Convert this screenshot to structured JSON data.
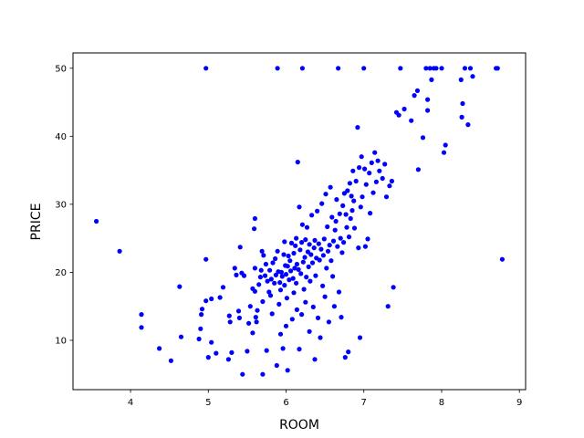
{
  "chart_data": {
    "type": "scatter",
    "xlabel": "ROOM",
    "ylabel": "PRICE",
    "xlim": [
      3.26,
      9.08
    ],
    "ylim": [
      2.75,
      52.25
    ],
    "xticks": [
      4,
      5,
      6,
      7,
      8,
      9
    ],
    "yticks": [
      10,
      20,
      30,
      40,
      50
    ],
    "grid": false,
    "marker_color": "#0000ff",
    "series": [
      {
        "points": [
          [
            3.56,
            27.5
          ],
          [
            3.86,
            23.1
          ],
          [
            4.14,
            13.8
          ],
          [
            4.14,
            11.9
          ],
          [
            4.37,
            8.8
          ],
          [
            4.52,
            7.0
          ],
          [
            4.63,
            17.9
          ],
          [
            4.65,
            10.5
          ],
          [
            4.88,
            10.2
          ],
          [
            4.9,
            11.7
          ],
          [
            4.91,
            13.8
          ],
          [
            4.92,
            14.6
          ],
          [
            4.97,
            15.8
          ],
          [
            4.97,
            50.0
          ],
          [
            4.97,
            21.9
          ],
          [
            5.0,
            7.5
          ],
          [
            5.04,
            9.7
          ],
          [
            5.1,
            8.1
          ],
          [
            5.04,
            16.1
          ],
          [
            5.15,
            16.3
          ],
          [
            5.19,
            17.8
          ],
          [
            5.26,
            7.2
          ],
          [
            5.27,
            13.6
          ],
          [
            5.28,
            12.7
          ],
          [
            5.3,
            8.2
          ],
          [
            5.34,
            20.6
          ],
          [
            5.36,
            19.6
          ],
          [
            5.39,
            14.3
          ],
          [
            5.4,
            13.3
          ],
          [
            5.41,
            23.7
          ],
          [
            5.43,
            19.9
          ],
          [
            5.44,
            5.0
          ],
          [
            5.46,
            19.5
          ],
          [
            5.5,
            8.4
          ],
          [
            5.52,
            12.5
          ],
          [
            5.54,
            15.0
          ],
          [
            5.57,
            11.1
          ],
          [
            5.57,
            17.6
          ],
          [
            5.59,
            26.4
          ],
          [
            5.6,
            27.9
          ],
          [
            5.6,
            20.6
          ],
          [
            5.6,
            17.2
          ],
          [
            5.61,
            13.4
          ],
          [
            5.62,
            12.7
          ],
          [
            5.63,
            14.4
          ],
          [
            5.65,
            18.2
          ],
          [
            5.67,
            19.3
          ],
          [
            5.68,
            20.3
          ],
          [
            5.69,
            23.1
          ],
          [
            5.7,
            5.0
          ],
          [
            5.7,
            15.7
          ],
          [
            5.71,
            22.5
          ],
          [
            5.73,
            19.5
          ],
          [
            5.74,
            21.2
          ],
          [
            5.75,
            8.5
          ],
          [
            5.76,
            18.7
          ],
          [
            5.78,
            17.1
          ],
          [
            5.79,
            20.3
          ],
          [
            5.8,
            16.6
          ],
          [
            5.81,
            19.0
          ],
          [
            5.82,
            13.9
          ],
          [
            5.83,
            21.4
          ],
          [
            5.85,
            18.4
          ],
          [
            5.86,
            22.0
          ],
          [
            5.87,
            19.6
          ],
          [
            5.88,
            6.3
          ],
          [
            5.89,
            50.0
          ],
          [
            5.89,
            23.1
          ],
          [
            5.9,
            20.1
          ],
          [
            5.91,
            15.3
          ],
          [
            5.92,
            18.5
          ],
          [
            5.93,
            10.9
          ],
          [
            5.93,
            17.4
          ],
          [
            5.94,
            20.0
          ],
          [
            5.95,
            19.4
          ],
          [
            5.96,
            8.8
          ],
          [
            5.97,
            22.6
          ],
          [
            5.98,
            18.1
          ],
          [
            5.98,
            24.5
          ],
          [
            5.99,
            21.0
          ],
          [
            6.0,
            19.7
          ],
          [
            6.0,
            12.1
          ],
          [
            6.01,
            16.2
          ],
          [
            6.02,
            20.9
          ],
          [
            6.02,
            5.6
          ],
          [
            6.03,
            22.4
          ],
          [
            6.04,
            18.9
          ],
          [
            6.05,
            21.7
          ],
          [
            6.06,
            20.2
          ],
          [
            6.07,
            24.3
          ],
          [
            6.08,
            13.1
          ],
          [
            6.09,
            19.1
          ],
          [
            6.1,
            22.8
          ],
          [
            6.1,
            17.0
          ],
          [
            6.11,
            20.6
          ],
          [
            6.12,
            23.9
          ],
          [
            6.13,
            25.0
          ],
          [
            6.13,
            18.4
          ],
          [
            6.14,
            14.5
          ],
          [
            6.14,
            21.2
          ],
          [
            6.15,
            36.2
          ],
          [
            6.16,
            20.4
          ],
          [
            6.17,
            8.7
          ],
          [
            6.17,
            29.6
          ],
          [
            6.18,
            23.3
          ],
          [
            6.19,
            19.8
          ],
          [
            6.2,
            24.4
          ],
          [
            6.2,
            13.8
          ],
          [
            6.21,
            27.0
          ],
          [
            6.21,
            50.0
          ],
          [
            6.22,
            21.5
          ],
          [
            6.23,
            17.5
          ],
          [
            6.24,
            22.2
          ],
          [
            6.25,
            15.6
          ],
          [
            6.25,
            24.8
          ],
          [
            6.26,
            19.3
          ],
          [
            6.27,
            26.6
          ],
          [
            6.28,
            23.0
          ],
          [
            6.29,
            20.8
          ],
          [
            6.3,
            11.3
          ],
          [
            6.3,
            24.1
          ],
          [
            6.31,
            18.7
          ],
          [
            6.32,
            22.6
          ],
          [
            6.33,
            28.4
          ],
          [
            6.34,
            21.4
          ],
          [
            6.35,
            14.9
          ],
          [
            6.36,
            23.6
          ],
          [
            6.37,
            7.2
          ],
          [
            6.37,
            24.7
          ],
          [
            6.38,
            19.5
          ],
          [
            6.39,
            22.1
          ],
          [
            6.4,
            29.0
          ],
          [
            6.41,
            13.3
          ],
          [
            6.42,
            24.2
          ],
          [
            6.43,
            21.8
          ],
          [
            6.44,
            10.4
          ],
          [
            6.45,
            23.4
          ],
          [
            6.46,
            30.1
          ],
          [
            6.47,
            18.0
          ],
          [
            6.48,
            22.5
          ],
          [
            6.49,
            24.9
          ],
          [
            6.5,
            16.4
          ],
          [
            6.51,
            31.5
          ],
          [
            6.52,
            20.6
          ],
          [
            6.53,
            26.7
          ],
          [
            6.54,
            23.1
          ],
          [
            6.55,
            12.7
          ],
          [
            6.56,
            24.0
          ],
          [
            6.57,
            32.5
          ],
          [
            6.58,
            21.7
          ],
          [
            6.59,
            28.1
          ],
          [
            6.6,
            19.4
          ],
          [
            6.61,
            24.6
          ],
          [
            6.62,
            15.0
          ],
          [
            6.63,
            26.2
          ],
          [
            6.64,
            27.5
          ],
          [
            6.65,
            30.7
          ],
          [
            6.66,
            23.8
          ],
          [
            6.67,
            50.0
          ],
          [
            6.68,
            17.1
          ],
          [
            6.69,
            28.6
          ],
          [
            6.7,
            25.0
          ],
          [
            6.71,
            13.4
          ],
          [
            6.72,
            22.9
          ],
          [
            6.73,
            29.8
          ],
          [
            6.74,
            24.4
          ],
          [
            6.75,
            31.6
          ],
          [
            6.76,
            7.5
          ],
          [
            6.77,
            28.5
          ],
          [
            6.78,
            26.6
          ],
          [
            6.79,
            32.0
          ],
          [
            6.8,
            8.3
          ],
          [
            6.81,
            25.2
          ],
          [
            6.82,
            33.1
          ],
          [
            6.83,
            27.9
          ],
          [
            6.84,
            31.2
          ],
          [
            6.85,
            29.1
          ],
          [
            6.86,
            34.9
          ],
          [
            6.87,
            30.5
          ],
          [
            6.88,
            26.5
          ],
          [
            6.9,
            33.4
          ],
          [
            6.92,
            41.3
          ],
          [
            6.93,
            23.6
          ],
          [
            6.94,
            35.4
          ],
          [
            6.95,
            10.4
          ],
          [
            6.96,
            29.6
          ],
          [
            6.97,
            37.0
          ],
          [
            6.98,
            31.1
          ],
          [
            7.0,
            50.0
          ],
          [
            7.01,
            35.2
          ],
          [
            7.02,
            23.8
          ],
          [
            7.03,
            32.9
          ],
          [
            7.05,
            24.9
          ],
          [
            7.07,
            34.6
          ],
          [
            7.08,
            28.7
          ],
          [
            7.1,
            36.1
          ],
          [
            7.12,
            31.7
          ],
          [
            7.14,
            37.6
          ],
          [
            7.16,
            33.3
          ],
          [
            7.18,
            36.4
          ],
          [
            7.2,
            34.9
          ],
          [
            7.24,
            33.8
          ],
          [
            7.27,
            35.9
          ],
          [
            7.29,
            31.1
          ],
          [
            7.31,
            15.0
          ],
          [
            7.33,
            32.7
          ],
          [
            7.36,
            33.4
          ],
          [
            7.38,
            17.8
          ],
          [
            7.42,
            43.5
          ],
          [
            7.45,
            43.1
          ],
          [
            7.47,
            50.0
          ],
          [
            7.52,
            44.0
          ],
          [
            7.61,
            42.3
          ],
          [
            7.65,
            46.0
          ],
          [
            7.69,
            46.7
          ],
          [
            7.7,
            35.1
          ],
          [
            7.76,
            39.8
          ],
          [
            7.8,
            50.0
          ],
          [
            7.82,
            45.4
          ],
          [
            7.82,
            43.8
          ],
          [
            7.85,
            50.0
          ],
          [
            7.87,
            48.3
          ],
          [
            7.9,
            50.0
          ],
          [
            7.93,
            50.0
          ],
          [
            8.0,
            50.0
          ],
          [
            8.03,
            37.6
          ],
          [
            8.05,
            38.7
          ],
          [
            8.25,
            48.3
          ],
          [
            8.26,
            42.8
          ],
          [
            8.27,
            44.8
          ],
          [
            8.3,
            50.0
          ],
          [
            8.34,
            41.7
          ],
          [
            8.37,
            50.0
          ],
          [
            8.4,
            48.8
          ],
          [
            8.7,
            50.0
          ],
          [
            8.72,
            50.0
          ],
          [
            8.78,
            21.9
          ]
        ]
      }
    ]
  }
}
